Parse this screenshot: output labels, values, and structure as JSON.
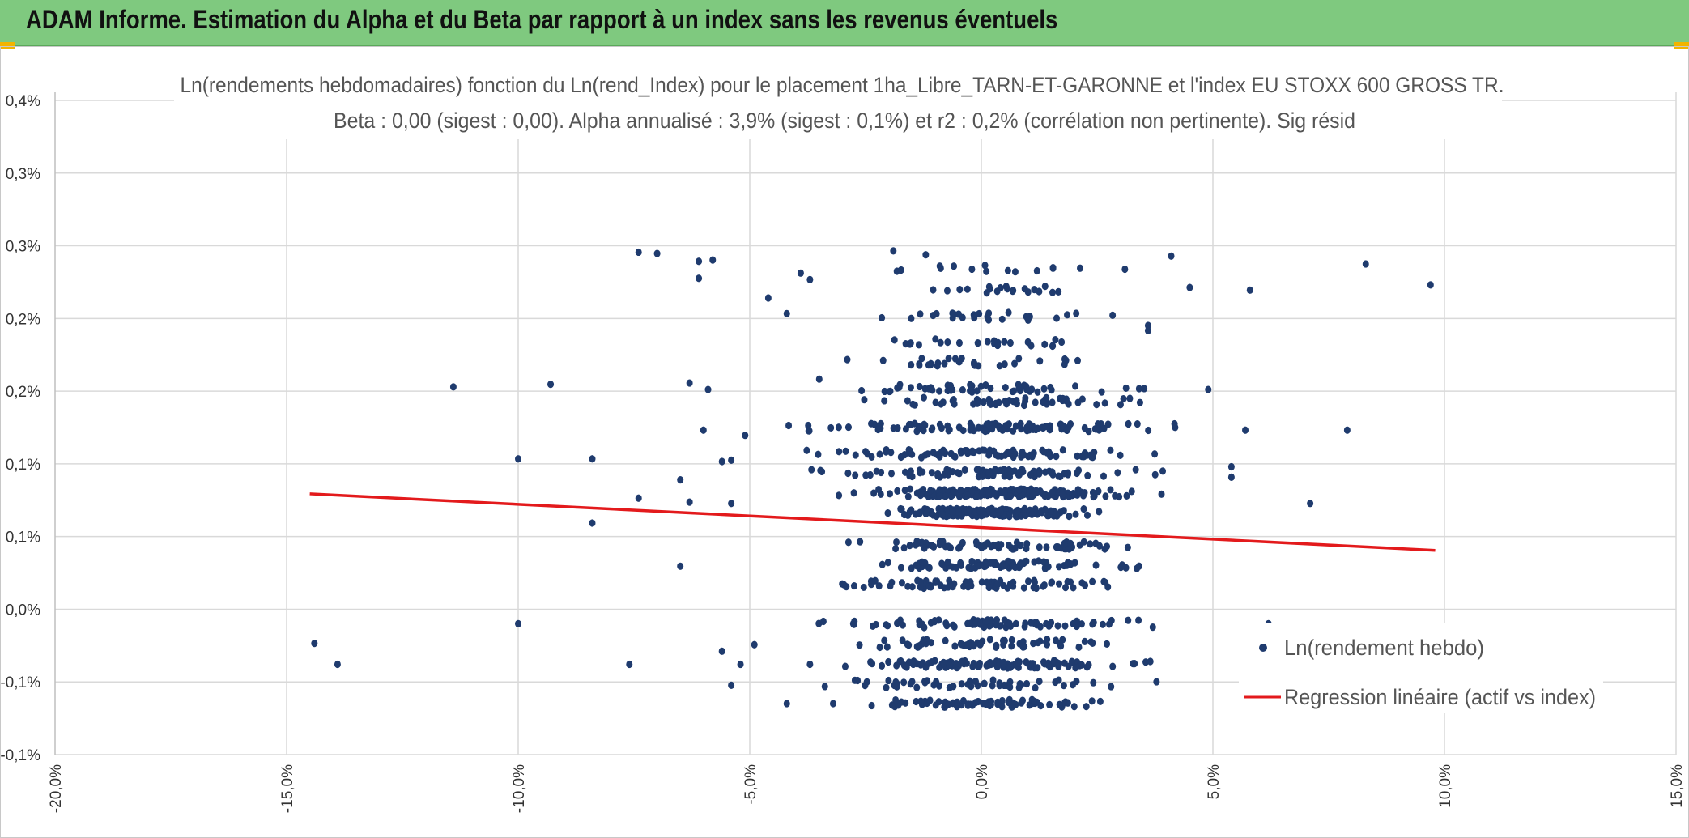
{
  "banner": {
    "title": "ADAM Informe. Estimation du Alpha et du Beta par rapport à un index sans les revenus éventuels",
    "color": "#7fc97f"
  },
  "chart_data": {
    "type": "scatter",
    "title": "Ln(rendements hebdomadaires) fonction du Ln(rend_Index) pour le placement 1ha_Libre_TARN-ET-GARONNE et l'index EU STOXX 600 GROSS TR.",
    "subtitle": "Beta : 0,00 (sigest : 0,00). Alpha annualisé : 3,9% (sigest : 0,1%) et r2 : 0,2% (corrélation non pertinente). Sig résid",
    "xlabel": "",
    "ylabel": "",
    "xlim": [
      -20,
      15
    ],
    "ylim": [
      -0.1,
      0.4
    ],
    "x_ticks": [
      "-20,0%",
      "-15,0%",
      "-10,0%",
      "-5,0%",
      "0,0%",
      "5,0%",
      "10,0%",
      "15,0%"
    ],
    "y_ticks": [
      "-0,1%",
      "-0,1%",
      "0,0%",
      "0,1%",
      "0,1%",
      "0,2%",
      "0,2%",
      "0,3%",
      "0,3%",
      "0,4%"
    ],
    "grid": true,
    "legend_position": "bottom-right",
    "series": [
      {
        "name": "Ln(rendement hebdo)",
        "kind": "scatter",
        "color": "#1f3b6e",
        "points": [
          [
            -14.4,
            -0.015
          ],
          [
            -13.9,
            -0.031
          ],
          [
            -11.4,
            0.181
          ],
          [
            -10.0,
            0.126
          ],
          [
            -9.3,
            0.183
          ],
          [
            -10.0,
            0.0
          ],
          [
            -8.4,
            0.077
          ],
          [
            -8.4,
            0.126
          ],
          [
            -7.6,
            -0.031
          ],
          [
            -7.4,
            0.096
          ],
          [
            -7.4,
            0.284
          ],
          [
            -7.0,
            0.283
          ],
          [
            -6.1,
            0.277
          ],
          [
            -6.1,
            0.264
          ],
          [
            -5.8,
            0.278
          ],
          [
            -6.3,
            0.184
          ],
          [
            -6.0,
            0.148
          ],
          [
            -5.9,
            0.179
          ],
          [
            -6.5,
            0.11
          ],
          [
            -6.3,
            0.093
          ],
          [
            -6.5,
            0.044
          ],
          [
            -5.6,
            0.124
          ],
          [
            -5.4,
            0.125
          ],
          [
            -5.4,
            0.092
          ],
          [
            -5.1,
            0.144
          ],
          [
            -5.4,
            -0.047
          ],
          [
            -5.6,
            -0.021
          ],
          [
            -5.2,
            -0.031
          ],
          [
            -4.9,
            -0.016
          ],
          [
            -4.6,
            0.249
          ],
          [
            -4.2,
            0.237
          ],
          [
            -3.9,
            0.268
          ],
          [
            -3.7,
            0.263
          ],
          [
            -3.5,
            0.187
          ],
          [
            -4.2,
            -0.061
          ],
          [
            -3.2,
            -0.061
          ],
          [
            -3.7,
            -0.031
          ],
          [
            7.1,
            0.092
          ],
          [
            7.9,
            0.148
          ],
          [
            8.3,
            0.275
          ],
          [
            9.7,
            0.259
          ],
          [
            5.8,
            0.255
          ],
          [
            6.1,
            -0.031
          ],
          [
            6.2,
            0.0
          ],
          [
            5.7,
            0.148
          ],
          [
            5.4,
            0.112
          ],
          [
            5.4,
            0.12
          ],
          [
            4.1,
            0.281
          ],
          [
            4.5,
            0.257
          ],
          [
            3.6,
            0.228
          ],
          [
            3.6,
            0.224
          ],
          [
            3.1,
            0.271
          ],
          [
            4.9,
            0.179
          ],
          [
            -1.9,
            0.285
          ],
          [
            -1.2,
            0.282
          ]
        ]
      },
      {
        "name": "Regression linéaire (actif vs index)",
        "kind": "line",
        "color": "#e31a1c",
        "points": [
          [
            -14.5,
            0.0993
          ],
          [
            9.8,
            0.0561
          ]
        ]
      }
    ]
  }
}
